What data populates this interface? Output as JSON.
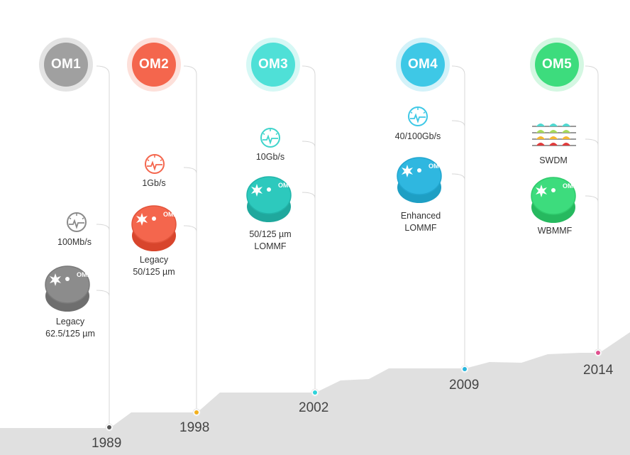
{
  "generations": [
    {
      "id": "om1",
      "label": "OM1",
      "color": "#a0a0a0",
      "halo": "#e3e3e3",
      "speed": "100Mb/s",
      "fiber_line1": "Legacy",
      "fiber_line2": "62.5/125 µm",
      "year": "1989",
      "dot_color": "#555555"
    },
    {
      "id": "om2",
      "label": "OM2",
      "color": "#f4664d",
      "halo": "#fde0da",
      "speed": "1Gb/s",
      "fiber_line1": "Legacy",
      "fiber_line2": "50/125 µm",
      "year": "1998",
      "dot_color": "#f2b01e"
    },
    {
      "id": "om3",
      "label": "OM3",
      "color": "#4fe0d7",
      "halo": "#d6f8f5",
      "speed": "10Gb/s",
      "fiber_line1": "50/125 µm",
      "fiber_line2": "LOMMF",
      "year": "2002",
      "dot_color": "#2ed3da"
    },
    {
      "id": "om4",
      "label": "OM4",
      "color": "#3ec8e6",
      "halo": "#d3f2f9",
      "speed": "40/100Gb/s",
      "fiber_line1": "Enhanced",
      "fiber_line2": "LOMMF",
      "year": "2009",
      "dot_color": "#28b6dd"
    },
    {
      "id": "om5",
      "label": "OM5",
      "color": "#3ddc7d",
      "halo": "#d4f7e2",
      "speed": "SWDM",
      "fiber_line1": "WBMMF",
      "fiber_line2": "",
      "year": "2014",
      "dot_color": "#e0508e"
    }
  ],
  "colors": {
    "mountain": "#e0e0e0",
    "line": "#d7d7d7",
    "spool_metal": "#c9c9c9"
  },
  "icons": {
    "speed": "speedometer-icon",
    "spool": "fiber-spool-icon",
    "swdm": "wavelength-multiplex-icon"
  }
}
